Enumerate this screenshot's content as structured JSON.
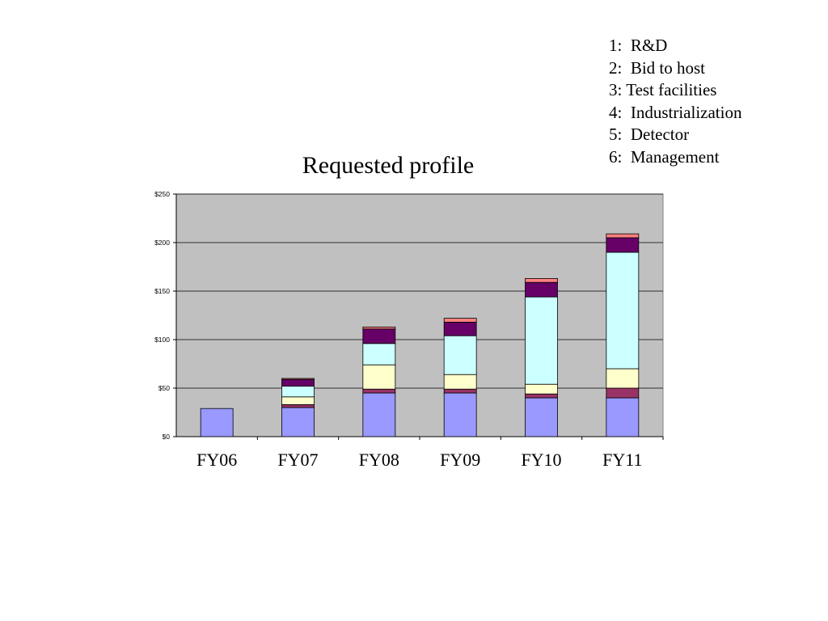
{
  "legend": [
    {
      "label": "1:  R&D"
    },
    {
      "label": "2:  Bid to host"
    },
    {
      "label": "3: Test facilities"
    },
    {
      "label": "4:  Industrialization"
    },
    {
      "label": "5:  Detector"
    },
    {
      "label": "6:  Management"
    }
  ],
  "chart_data": {
    "type": "bar",
    "stacked": true,
    "title": "Requested profile",
    "xlabel": "",
    "ylabel": "",
    "categories": [
      "FY06",
      "FY07",
      "FY08",
      "FY09",
      "FY10",
      "FY11"
    ],
    "ylim": [
      0,
      250
    ],
    "yticks": [
      "$0",
      "$50",
      "$100",
      "$150",
      "$200",
      "$250"
    ],
    "ytick_values": [
      0,
      50,
      100,
      150,
      200,
      250
    ],
    "grid": true,
    "plot_background": "#c0c0c0",
    "series": [
      {
        "color": "#9999ff",
        "values": [
          29,
          30,
          45,
          45,
          40,
          40
        ]
      },
      {
        "color": "#993366",
        "values": [
          0,
          3,
          4,
          4,
          4,
          10
        ]
      },
      {
        "color": "#ffffcc",
        "values": [
          0,
          8,
          25,
          15,
          10,
          20
        ]
      },
      {
        "color": "#ccffff",
        "values": [
          0,
          11,
          22,
          40,
          90,
          120
        ]
      },
      {
        "color": "#660066",
        "values": [
          0,
          7,
          15,
          14,
          15,
          15
        ]
      },
      {
        "color": "#ff8080",
        "values": [
          0,
          1,
          2,
          4,
          4,
          4
        ]
      }
    ]
  }
}
